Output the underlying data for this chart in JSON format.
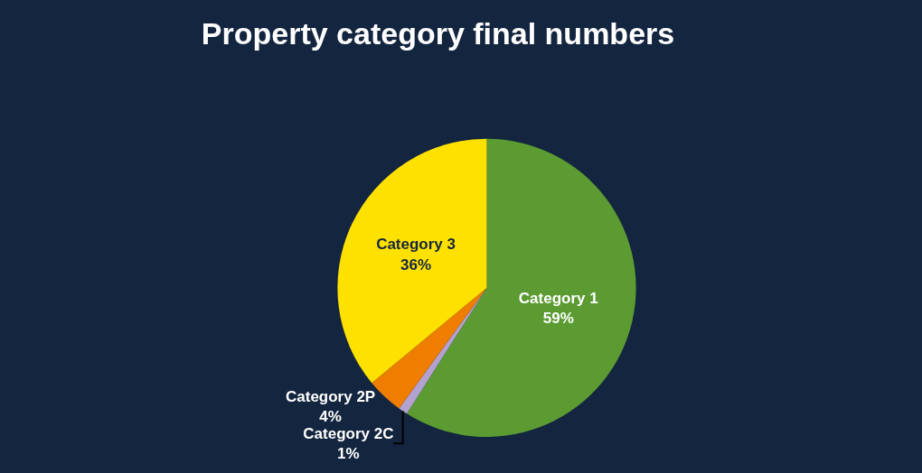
{
  "chart_data": {
    "type": "pie",
    "title": "Property category final numbers",
    "categories": [
      "Category 1",
      "Category 2C",
      "Category 2P",
      "Category 3"
    ],
    "values": [
      59,
      1,
      4,
      36
    ],
    "value_labels": [
      "59%",
      "1%",
      "4%",
      "36%"
    ],
    "colors": [
      "#5b9b32",
      "#b3a2cf",
      "#ef7d00",
      "#ffe100"
    ]
  }
}
